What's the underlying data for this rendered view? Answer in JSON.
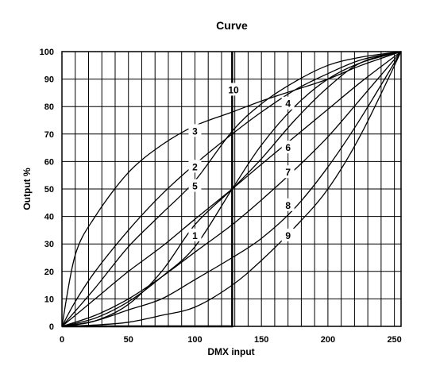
{
  "chart_data": {
    "type": "line",
    "title": "Curve",
    "xlabel": "DMX input",
    "ylabel": "Output %",
    "xlim": [
      0,
      255
    ],
    "ylim": [
      0,
      100
    ],
    "x_ticks": [
      0,
      50,
      100,
      150,
      200,
      250
    ],
    "y_ticks": [
      0,
      10,
      20,
      30,
      40,
      50,
      60,
      70,
      80,
      90,
      100
    ],
    "grid": true,
    "series": [
      {
        "name": "1",
        "label_at": [
          100,
          33
        ],
        "points": [
          [
            0,
            0
          ],
          [
            25,
            3
          ],
          [
            50,
            9
          ],
          [
            75,
            18
          ],
          [
            100,
            29
          ],
          [
            128,
            50
          ],
          [
            150,
            66
          ],
          [
            175,
            80
          ],
          [
            200,
            90
          ],
          [
            225,
            96
          ],
          [
            255,
            100
          ]
        ]
      },
      {
        "name": "2",
        "label_at": [
          100,
          58
        ],
        "points": [
          [
            0,
            0
          ],
          [
            25,
            14
          ],
          [
            50,
            29
          ],
          [
            75,
            41
          ],
          [
            100,
            53
          ],
          [
            128,
            71
          ],
          [
            150,
            81
          ],
          [
            175,
            89
          ],
          [
            200,
            95
          ],
          [
            225,
            98
          ],
          [
            255,
            100
          ]
        ]
      },
      {
        "name": "3",
        "label_at": [
          100,
          71
        ],
        "points": [
          [
            0,
            0
          ],
          [
            10,
            26
          ],
          [
            25,
            40
          ],
          [
            50,
            56
          ],
          [
            75,
            66
          ],
          [
            100,
            73
          ],
          [
            128,
            78
          ],
          [
            150,
            82
          ],
          [
            175,
            86
          ],
          [
            200,
            90
          ],
          [
            225,
            95
          ],
          [
            255,
            100
          ]
        ]
      },
      {
        "name": "4",
        "label_at": [
          170,
          81
        ],
        "points": [
          [
            0,
            0
          ],
          [
            10,
            9
          ],
          [
            25,
            20
          ],
          [
            50,
            35
          ],
          [
            75,
            48
          ],
          [
            100,
            59
          ],
          [
            128,
            70
          ],
          [
            150,
            78
          ],
          [
            175,
            86
          ],
          [
            200,
            92
          ],
          [
            225,
            97
          ],
          [
            255,
            100
          ]
        ]
      },
      {
        "name": "5",
        "label_at": [
          100,
          51
        ],
        "points": [
          [
            0,
            0
          ],
          [
            25,
            2
          ],
          [
            50,
            8
          ],
          [
            75,
            20
          ],
          [
            100,
            37
          ],
          [
            128,
            50
          ],
          [
            150,
            61
          ],
          [
            175,
            75
          ],
          [
            200,
            87
          ],
          [
            225,
            96
          ],
          [
            255,
            100
          ]
        ]
      },
      {
        "name": "6",
        "label_at": [
          170,
          65
        ],
        "points": [
          [
            0,
            0
          ],
          [
            25,
            10
          ],
          [
            50,
            20
          ],
          [
            75,
            29
          ],
          [
            100,
            39
          ],
          [
            128,
            50
          ],
          [
            150,
            59
          ],
          [
            175,
            69
          ],
          [
            200,
            79
          ],
          [
            225,
            89
          ],
          [
            255,
            100
          ]
        ]
      },
      {
        "name": "7",
        "label_at": [
          170,
          56
        ],
        "points": [
          [
            0,
            0
          ],
          [
            25,
            4
          ],
          [
            50,
            10
          ],
          [
            75,
            18
          ],
          [
            100,
            27
          ],
          [
            128,
            37
          ],
          [
            150,
            46
          ],
          [
            175,
            57
          ],
          [
            200,
            69
          ],
          [
            225,
            83
          ],
          [
            255,
            100
          ]
        ]
      },
      {
        "name": "8",
        "label_at": [
          170,
          44
        ],
        "points": [
          [
            0,
            0
          ],
          [
            25,
            2
          ],
          [
            50,
            6
          ],
          [
            75,
            10
          ],
          [
            100,
            17
          ],
          [
            128,
            25
          ],
          [
            150,
            32
          ],
          [
            175,
            43
          ],
          [
            200,
            58
          ],
          [
            225,
            76
          ],
          [
            255,
            100
          ]
        ]
      },
      {
        "name": "9",
        "label_at": [
          170,
          33
        ],
        "points": [
          [
            0,
            0
          ],
          [
            25,
            0.5
          ],
          [
            50,
            1.5
          ],
          [
            75,
            4
          ],
          [
            100,
            7
          ],
          [
            128,
            15
          ],
          [
            150,
            24
          ],
          [
            175,
            36
          ],
          [
            200,
            50
          ],
          [
            225,
            70
          ],
          [
            255,
            100
          ]
        ]
      },
      {
        "name": "10",
        "label_at": [
          129,
          86
        ],
        "points": [
          [
            0,
            0
          ],
          [
            127,
            0
          ],
          [
            128,
            0
          ],
          [
            128,
            100
          ]
        ]
      }
    ]
  }
}
